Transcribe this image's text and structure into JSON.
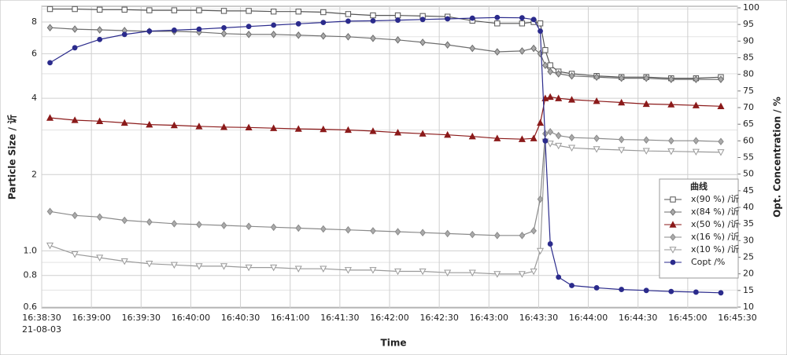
{
  "chart_data": {
    "type": "line",
    "x_label": "Time",
    "y_label": "Particle Size / 䜣",
    "y2_label": "Opt. Concentration / %",
    "x_date_label": "21-08-03",
    "legend_title": "曲线",
    "legend": "right",
    "xlim": [
      "16:38:30",
      "16:45:30"
    ],
    "xticks": [
      "16:38:30",
      "16:39:00",
      "16:39:30",
      "16:40:00",
      "16:40:30",
      "16:41:00",
      "16:41:30",
      "16:42:00",
      "16:42:30",
      "16:43:00",
      "16:43:30",
      "16:44:00",
      "16:44:30",
      "16:45:00",
      "16:45:30"
    ],
    "y_scale": "log",
    "ylim": [
      0.6,
      9.1
    ],
    "yticks": [
      0.6,
      0.8,
      {
        "value": 1.0,
        "label": "1.0"
      },
      2,
      4,
      6,
      8
    ],
    "y_minor_ticks": [
      0.7,
      0.9,
      3,
      5,
      7,
      9
    ],
    "y2lim": [
      10,
      100
    ],
    "y2ticks": [
      10,
      15,
      20,
      25,
      30,
      35,
      40,
      45,
      50,
      55,
      60,
      65,
      70,
      75,
      80,
      85,
      90,
      95,
      100
    ],
    "grid": true,
    "x": [
      "16:38:35",
      "16:38:50",
      "16:39:05",
      "16:39:20",
      "16:39:35",
      "16:39:50",
      "16:40:05",
      "16:40:20",
      "16:40:35",
      "16:40:50",
      "16:41:05",
      "16:41:20",
      "16:41:35",
      "16:41:50",
      "16:42:05",
      "16:42:20",
      "16:42:35",
      "16:42:50",
      "16:43:05",
      "16:43:20",
      "16:43:27",
      "16:43:31",
      "16:43:34",
      "16:43:37",
      "16:43:42",
      "16:43:50",
      "16:44:05",
      "16:44:20",
      "16:44:35",
      "16:44:50",
      "16:45:05",
      "16:45:20"
    ],
    "series": [
      {
        "name": "x(90 %) /䜣",
        "color": "#555555",
        "marker": "square",
        "values": [
          9.0,
          9.0,
          8.95,
          8.95,
          8.9,
          8.9,
          8.9,
          8.85,
          8.85,
          8.8,
          8.8,
          8.75,
          8.6,
          8.5,
          8.5,
          8.45,
          8.4,
          8.1,
          7.9,
          7.9,
          8.0,
          7.9,
          6.2,
          5.4,
          5.1,
          5.0,
          4.9,
          4.85,
          4.85,
          4.8,
          4.8,
          4.85
        ]
      },
      {
        "name": "x(84 %) /䜣",
        "color": "#6e6e6e",
        "marker": "diamond",
        "values": [
          7.6,
          7.5,
          7.45,
          7.4,
          7.35,
          7.35,
          7.3,
          7.2,
          7.15,
          7.15,
          7.1,
          7.05,
          7.0,
          6.9,
          6.8,
          6.65,
          6.5,
          6.3,
          6.1,
          6.15,
          6.3,
          6.0,
          5.4,
          5.1,
          5.0,
          4.9,
          4.85,
          4.8,
          4.8,
          4.75,
          4.75,
          4.75
        ]
      },
      {
        "name": "x(50 %) /䜣",
        "color": "#8b1a1a",
        "marker": "triangle-up",
        "values": [
          3.35,
          3.28,
          3.25,
          3.2,
          3.15,
          3.13,
          3.1,
          3.08,
          3.07,
          3.05,
          3.03,
          3.02,
          3.0,
          2.97,
          2.93,
          2.9,
          2.87,
          2.83,
          2.78,
          2.76,
          2.78,
          3.2,
          4.0,
          4.05,
          4.0,
          3.95,
          3.9,
          3.85,
          3.8,
          3.78,
          3.75,
          3.72
        ]
      },
      {
        "name": "x(16 %) /䜣",
        "color": "#8a8a8a",
        "marker": "diamond",
        "values": [
          1.43,
          1.38,
          1.36,
          1.32,
          1.3,
          1.28,
          1.27,
          1.26,
          1.25,
          1.24,
          1.23,
          1.22,
          1.21,
          1.2,
          1.19,
          1.18,
          1.17,
          1.16,
          1.15,
          1.15,
          1.2,
          1.6,
          2.9,
          2.95,
          2.85,
          2.8,
          2.78,
          2.75,
          2.74,
          2.72,
          2.72,
          2.7
        ]
      },
      {
        "name": "x(10 %) /䜣",
        "color": "#9a9a9a",
        "marker": "triangle-down",
        "values": [
          1.05,
          0.97,
          0.94,
          0.91,
          0.89,
          0.88,
          0.87,
          0.87,
          0.86,
          0.86,
          0.85,
          0.85,
          0.84,
          0.84,
          0.83,
          0.83,
          0.82,
          0.82,
          0.81,
          0.81,
          0.83,
          1.0,
          2.7,
          2.65,
          2.6,
          2.55,
          2.52,
          2.5,
          2.48,
          2.47,
          2.46,
          2.45
        ]
      },
      {
        "name": "Copt /%",
        "color": "#2b2b8c",
        "marker": "circle",
        "axis": "y2",
        "values": [
          83.5,
          88,
          90.5,
          92,
          93,
          93.3,
          93.6,
          94,
          94.4,
          94.8,
          95.2,
          95.6,
          96,
          96.1,
          96.3,
          96.5,
          96.7,
          96.9,
          97.1,
          97,
          96.5,
          93,
          60,
          29,
          19,
          16.5,
          15.8,
          15.3,
          15,
          14.7,
          14.5,
          14.3
        ]
      }
    ]
  }
}
